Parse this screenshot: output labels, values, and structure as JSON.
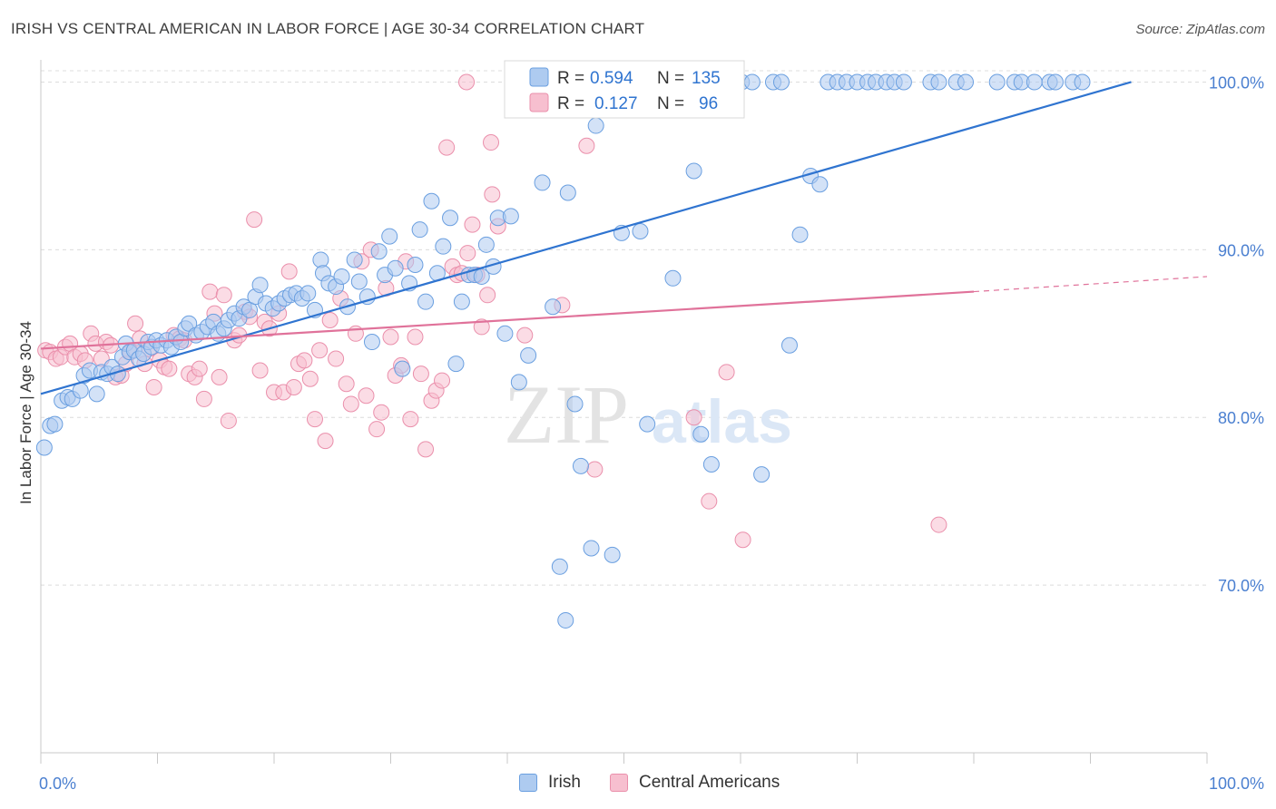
{
  "header": {
    "title": "IRISH VS CENTRAL AMERICAN IN LABOR FORCE | AGE 30-34 CORRELATION CHART",
    "source": "Source: ZipAtlas.com"
  },
  "watermark": {
    "zip": "ZIP",
    "atlas": "atlas"
  },
  "colors": {
    "irish_fill": "#aecbf0",
    "irish_stroke": "#6a9fe0",
    "irish_line": "#2f74d0",
    "central_fill": "#f7bfcf",
    "central_stroke": "#ea8fab",
    "central_line": "#e0729a",
    "grid": "#dcdcdc",
    "axis_label": "#4a7fd0"
  },
  "legend": {
    "r_label": "R =",
    "n_label": "N =",
    "rows": [
      {
        "r": "0.594",
        "n": "135"
      },
      {
        "r": "0.127",
        "n": "96"
      }
    ]
  },
  "chart_data": {
    "type": "scatter",
    "title": "IRISH VS CENTRAL AMERICAN IN LABOR FORCE | AGE 30-34 CORRELATION CHART",
    "ylabel": "In Labor Force | Age 30-34",
    "xlabel": "",
    "xlim": [
      0,
      100
    ],
    "ylim": [
      60,
      101
    ],
    "x_tick_labels": [
      "0.0%",
      "100.0%"
    ],
    "y_tick_labels": [
      "70.0%",
      "80.0%",
      "90.0%",
      "100.0%"
    ],
    "y_ticks": [
      70,
      80,
      90,
      100
    ],
    "grid": true,
    "legend_position": "top-center",
    "series": [
      {
        "name": "Irish",
        "r": 0.594,
        "n": 135,
        "trend": {
          "x": [
            0.0,
            93.5
          ],
          "y": [
            81.4,
            100.0
          ]
        },
        "points": [
          [
            0.3,
            78.2
          ],
          [
            0.8,
            79.5
          ],
          [
            1.2,
            79.6
          ],
          [
            1.8,
            81.0
          ],
          [
            2.3,
            81.2
          ],
          [
            2.7,
            81.1
          ],
          [
            3.4,
            81.6
          ],
          [
            3.7,
            82.5
          ],
          [
            4.2,
            82.8
          ],
          [
            4.8,
            81.4
          ],
          [
            5.2,
            82.7
          ],
          [
            5.7,
            82.6
          ],
          [
            6.1,
            83.0
          ],
          [
            6.6,
            82.6
          ],
          [
            7.0,
            83.6
          ],
          [
            7.3,
            84.4
          ],
          [
            7.6,
            83.9
          ],
          [
            8.0,
            84.0
          ],
          [
            8.4,
            83.5
          ],
          [
            8.8,
            83.8
          ],
          [
            9.2,
            84.5
          ],
          [
            9.5,
            84.2
          ],
          [
            9.9,
            84.6
          ],
          [
            10.3,
            84.3
          ],
          [
            10.8,
            84.6
          ],
          [
            11.2,
            84.2
          ],
          [
            11.6,
            84.8
          ],
          [
            12.0,
            84.5
          ],
          [
            12.4,
            85.3
          ],
          [
            12.7,
            85.6
          ],
          [
            13.3,
            84.9
          ],
          [
            13.8,
            85.1
          ],
          [
            14.3,
            85.4
          ],
          [
            14.8,
            85.7
          ],
          [
            15.2,
            85.0
          ],
          [
            15.7,
            85.3
          ],
          [
            16.1,
            85.8
          ],
          [
            16.6,
            86.2
          ],
          [
            17.0,
            85.9
          ],
          [
            17.4,
            86.6
          ],
          [
            17.9,
            86.4
          ],
          [
            18.4,
            87.2
          ],
          [
            18.8,
            87.9
          ],
          [
            19.3,
            86.8
          ],
          [
            19.9,
            86.5
          ],
          [
            20.4,
            86.8
          ],
          [
            20.9,
            87.1
          ],
          [
            21.4,
            87.3
          ],
          [
            21.9,
            87.4
          ],
          [
            22.4,
            87.1
          ],
          [
            22.9,
            87.4
          ],
          [
            23.5,
            86.4
          ],
          [
            24.0,
            89.4
          ],
          [
            24.2,
            88.6
          ],
          [
            24.7,
            88.0
          ],
          [
            25.3,
            87.8
          ],
          [
            25.8,
            88.4
          ],
          [
            26.3,
            86.6
          ],
          [
            26.9,
            89.4
          ],
          [
            27.3,
            88.1
          ],
          [
            28.0,
            87.2
          ],
          [
            28.4,
            84.5
          ],
          [
            29.0,
            89.9
          ],
          [
            29.5,
            88.5
          ],
          [
            29.9,
            90.8
          ],
          [
            30.4,
            88.9
          ],
          [
            31.0,
            82.9
          ],
          [
            31.6,
            88.0
          ],
          [
            32.1,
            89.1
          ],
          [
            32.5,
            91.2
          ],
          [
            33.0,
            86.9
          ],
          [
            33.5,
            92.9
          ],
          [
            34.0,
            88.6
          ],
          [
            34.5,
            90.2
          ],
          [
            35.1,
            91.9
          ],
          [
            35.6,
            83.2
          ],
          [
            36.1,
            86.9
          ],
          [
            36.7,
            88.5
          ],
          [
            37.2,
            88.5
          ],
          [
            37.8,
            88.4
          ],
          [
            38.2,
            90.3
          ],
          [
            38.8,
            89.0
          ],
          [
            39.2,
            91.9
          ],
          [
            39.8,
            85.0
          ],
          [
            40.3,
            92.0
          ],
          [
            41.0,
            82.1
          ],
          [
            41.8,
            83.7
          ],
          [
            43.0,
            94.0
          ],
          [
            43.9,
            86.6
          ],
          [
            44.5,
            100.0
          ],
          [
            45.2,
            93.4
          ],
          [
            45.8,
            80.8
          ],
          [
            46.3,
            77.1
          ],
          [
            47.0,
            99.9
          ],
          [
            47.6,
            97.4
          ],
          [
            48.5,
            100.0
          ],
          [
            49.8,
            91.0
          ],
          [
            50.6,
            100.0
          ],
          [
            51.4,
            91.1
          ],
          [
            52.3,
            100.0
          ],
          [
            53.5,
            100.0
          ],
          [
            54.2,
            88.3
          ],
          [
            55.0,
            100.0
          ],
          [
            55.8,
            100.0
          ],
          [
            56.6,
            79.0
          ],
          [
            57.4,
            100.0
          ],
          [
            58.3,
            100.0
          ],
          [
            59.2,
            100.0
          ],
          [
            60.1,
            100.0
          ],
          [
            61.0,
            100.0
          ],
          [
            61.8,
            76.6
          ],
          [
            62.8,
            100.0
          ],
          [
            63.5,
            100.0
          ],
          [
            64.2,
            84.3
          ],
          [
            65.1,
            90.9
          ],
          [
            66.0,
            94.4
          ],
          [
            66.8,
            93.9
          ],
          [
            67.5,
            100.0
          ],
          [
            68.3,
            100.0
          ],
          [
            69.1,
            100.0
          ],
          [
            70.0,
            100.0
          ],
          [
            70.9,
            100.0
          ],
          [
            71.6,
            100.0
          ],
          [
            72.5,
            100.0
          ],
          [
            73.2,
            100.0
          ],
          [
            74.0,
            100.0
          ],
          [
            76.3,
            100.0
          ],
          [
            77.0,
            100.0
          ],
          [
            78.5,
            100.0
          ],
          [
            79.3,
            100.0
          ],
          [
            82.0,
            100.0
          ],
          [
            83.5,
            100.0
          ],
          [
            84.1,
            100.0
          ],
          [
            85.2,
            100.0
          ],
          [
            86.5,
            100.0
          ],
          [
            87.0,
            100.0
          ],
          [
            88.5,
            100.0
          ],
          [
            89.3,
            100.0
          ],
          [
            56.0,
            94.7
          ],
          [
            52.0,
            79.6
          ],
          [
            57.5,
            77.2
          ],
          [
            47.2,
            72.2
          ],
          [
            49.0,
            71.8
          ],
          [
            44.5,
            71.1
          ],
          [
            45.0,
            67.9
          ]
        ]
      },
      {
        "name": "Central Americans",
        "r": 0.127,
        "n": 96,
        "trend": {
          "x": [
            0.0,
            80.0
          ],
          "y": [
            84.1,
            87.5
          ]
        },
        "trend_dashed": {
          "x": [
            80.0,
            100.0
          ],
          "y": [
            87.5,
            88.4
          ]
        },
        "points": [
          [
            0.4,
            84.0
          ],
          [
            0.8,
            83.9
          ],
          [
            1.3,
            83.5
          ],
          [
            1.7,
            83.6
          ],
          [
            2.1,
            84.2
          ],
          [
            2.5,
            84.4
          ],
          [
            2.9,
            83.6
          ],
          [
            3.4,
            83.8
          ],
          [
            3.8,
            83.4
          ],
          [
            4.3,
            85.0
          ],
          [
            4.7,
            84.4
          ],
          [
            5.2,
            83.5
          ],
          [
            5.6,
            84.5
          ],
          [
            6.0,
            84.3
          ],
          [
            6.4,
            82.4
          ],
          [
            6.9,
            82.5
          ],
          [
            7.3,
            83.2
          ],
          [
            7.7,
            83.9
          ],
          [
            8.1,
            85.6
          ],
          [
            8.5,
            84.7
          ],
          [
            8.9,
            83.2
          ],
          [
            9.3,
            84.1
          ],
          [
            9.7,
            81.8
          ],
          [
            10.2,
            83.4
          ],
          [
            10.6,
            83.0
          ],
          [
            11.0,
            82.9
          ],
          [
            11.4,
            84.9
          ],
          [
            11.9,
            84.7
          ],
          [
            12.3,
            84.6
          ],
          [
            12.7,
            82.6
          ],
          [
            13.2,
            82.4
          ],
          [
            13.6,
            82.9
          ],
          [
            14.0,
            81.1
          ],
          [
            14.5,
            87.5
          ],
          [
            14.9,
            86.2
          ],
          [
            15.3,
            82.4
          ],
          [
            15.7,
            87.3
          ],
          [
            16.1,
            79.8
          ],
          [
            16.6,
            84.6
          ],
          [
            17.0,
            84.9
          ],
          [
            17.5,
            86.3
          ],
          [
            17.9,
            86.0
          ],
          [
            18.3,
            91.8
          ],
          [
            18.8,
            82.8
          ],
          [
            19.2,
            85.7
          ],
          [
            19.6,
            85.3
          ],
          [
            20.0,
            81.5
          ],
          [
            20.4,
            86.2
          ],
          [
            20.8,
            81.5
          ],
          [
            21.3,
            88.7
          ],
          [
            21.7,
            81.8
          ],
          [
            22.1,
            83.2
          ],
          [
            22.6,
            83.4
          ],
          [
            23.1,
            82.3
          ],
          [
            23.5,
            79.9
          ],
          [
            23.9,
            84.0
          ],
          [
            24.4,
            78.6
          ],
          [
            24.8,
            85.8
          ],
          [
            25.3,
            83.5
          ],
          [
            25.7,
            87.1
          ],
          [
            26.2,
            82.0
          ],
          [
            26.6,
            80.8
          ],
          [
            27.0,
            85.0
          ],
          [
            27.5,
            89.3
          ],
          [
            27.9,
            81.3
          ],
          [
            28.3,
            90.0
          ],
          [
            28.8,
            79.3
          ],
          [
            29.2,
            80.3
          ],
          [
            29.6,
            87.7
          ],
          [
            30.0,
            84.8
          ],
          [
            30.4,
            82.5
          ],
          [
            30.9,
            83.1
          ],
          [
            31.3,
            89.3
          ],
          [
            31.7,
            79.9
          ],
          [
            32.1,
            84.8
          ],
          [
            32.6,
            82.6
          ],
          [
            33.0,
            78.1
          ],
          [
            33.5,
            81.0
          ],
          [
            33.9,
            81.6
          ],
          [
            34.4,
            82.2
          ],
          [
            34.8,
            96.1
          ],
          [
            35.3,
            89.0
          ],
          [
            35.7,
            88.5
          ],
          [
            36.1,
            88.6
          ],
          [
            36.6,
            89.8
          ],
          [
            37.0,
            91.5
          ],
          [
            37.4,
            88.5
          ],
          [
            37.8,
            85.4
          ],
          [
            38.3,
            87.3
          ],
          [
            38.7,
            93.3
          ],
          [
            39.2,
            91.4
          ],
          [
            46.8,
            96.2
          ],
          [
            47.5,
            76.9
          ],
          [
            56.0,
            80.0
          ],
          [
            57.3,
            75.0
          ],
          [
            58.8,
            82.7
          ],
          [
            60.2,
            72.7
          ],
          [
            77.0,
            73.6
          ],
          [
            36.5,
            100.0
          ],
          [
            38.6,
            96.4
          ],
          [
            41.5,
            84.9
          ],
          [
            44.7,
            86.7
          ]
        ]
      }
    ]
  },
  "bottom_legend": {
    "items": [
      "Irish",
      "Central Americans"
    ]
  }
}
